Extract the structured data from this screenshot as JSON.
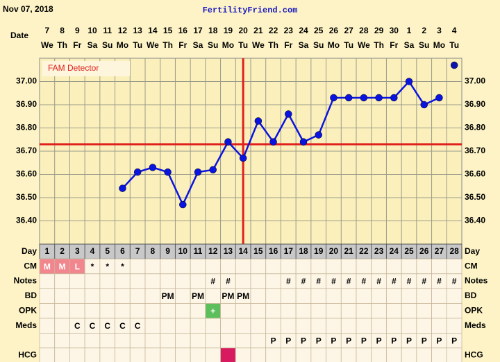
{
  "chart_data": {
    "type": "line",
    "date_label": "Nov 07, 2018",
    "site": "FertilityFriend.com",
    "date_axis_label": "Date",
    "annotation": "FAM Detector",
    "dates": [
      "7",
      "8",
      "9",
      "10",
      "11",
      "12",
      "13",
      "14",
      "15",
      "16",
      "17",
      "18",
      "19",
      "20",
      "21",
      "22",
      "23",
      "24",
      "25",
      "26",
      "27",
      "28",
      "29",
      "30",
      "1",
      "2",
      "3",
      "4"
    ],
    "weekdays": [
      "We",
      "Th",
      "Fr",
      "Sa",
      "Su",
      "Mo",
      "Tu",
      "We",
      "Th",
      "Fr",
      "Sa",
      "Su",
      "Mo",
      "Tu",
      "We",
      "Th",
      "Fr",
      "Sa",
      "Su",
      "Mo",
      "Tu",
      "We",
      "Th",
      "Fr",
      "Sa",
      "Su",
      "Mo",
      "Tu"
    ],
    "day_row_label": "Day",
    "categories": [
      "1",
      "2",
      "3",
      "4",
      "5",
      "6",
      "7",
      "8",
      "9",
      "10",
      "11",
      "12",
      "13",
      "14",
      "15",
      "16",
      "17",
      "18",
      "19",
      "20",
      "21",
      "22",
      "23",
      "24",
      "25",
      "26",
      "27",
      "28"
    ],
    "series": [
      {
        "color": "#0a14e0",
        "values": [
          null,
          null,
          null,
          null,
          null,
          36.54,
          36.61,
          36.63,
          36.61,
          36.47,
          36.61,
          36.62,
          36.74,
          36.67,
          36.83,
          36.74,
          36.86,
          36.74,
          36.77,
          36.93,
          36.93,
          36.93,
          36.93,
          36.93,
          37.0,
          36.9,
          36.93,
          null
        ]
      },
      {
        "color": "#0a14b0",
        "values": [
          null,
          null,
          null,
          null,
          null,
          null,
          null,
          null,
          null,
          null,
          null,
          null,
          null,
          null,
          null,
          null,
          null,
          null,
          null,
          null,
          null,
          null,
          null,
          null,
          null,
          null,
          null,
          37.07
        ]
      }
    ],
    "ylim": [
      36.3,
      37.1
    ],
    "yticks": [
      {
        "value": 36.4,
        "label": "36.40"
      },
      {
        "value": 36.5,
        "label": "36.50"
      },
      {
        "value": 36.6,
        "label": "36.60"
      },
      {
        "value": 36.7,
        "label": "36.70"
      },
      {
        "value": 36.8,
        "label": "36.80"
      },
      {
        "value": 36.9,
        "label": "36.90"
      },
      {
        "value": 37.0,
        "label": "37.00"
      }
    ],
    "grid": true,
    "coverline": 36.73,
    "ovulation_day": "14",
    "line_color": "#e0201c",
    "table": {
      "rows": [
        {
          "label": "CM",
          "cells": [
            "M",
            "M",
            "L",
            "*",
            "*",
            "*",
            null,
            null,
            null,
            null,
            null,
            null,
            null,
            null,
            null,
            null,
            null,
            null,
            null,
            null,
            null,
            null,
            null,
            null,
            null,
            null,
            null,
            null
          ],
          "fills": [
            "#f2868e",
            "#f2868e",
            "#f2868e",
            null,
            null,
            null,
            null,
            null,
            null,
            null,
            null,
            null,
            null,
            null,
            null,
            null,
            null,
            null,
            null,
            null,
            null,
            null,
            null,
            null,
            null,
            null,
            null,
            null
          ]
        },
        {
          "label": "Notes",
          "cells": [
            null,
            null,
            null,
            null,
            null,
            null,
            null,
            null,
            null,
            null,
            null,
            "#",
            "#",
            null,
            null,
            null,
            "#",
            "#",
            "#",
            "#",
            "#",
            "#",
            "#",
            "#",
            "#",
            "#",
            "#",
            "#"
          ]
        },
        {
          "label": "BD",
          "cells": [
            null,
            null,
            null,
            null,
            null,
            null,
            null,
            null,
            "PM",
            null,
            "PM",
            null,
            "PM",
            "PM",
            null,
            null,
            null,
            null,
            null,
            null,
            null,
            null,
            null,
            null,
            null,
            null,
            null,
            null
          ]
        },
        {
          "label": "OPK",
          "cells": [
            null,
            null,
            null,
            null,
            null,
            null,
            null,
            null,
            null,
            null,
            null,
            "+",
            null,
            null,
            null,
            null,
            null,
            null,
            null,
            null,
            null,
            null,
            null,
            null,
            null,
            null,
            null,
            null
          ],
          "fills": [
            null,
            null,
            null,
            null,
            null,
            null,
            null,
            null,
            null,
            null,
            null,
            "#5cbf5c",
            null,
            null,
            null,
            null,
            null,
            null,
            null,
            null,
            null,
            null,
            null,
            null,
            null,
            null,
            null,
            null
          ]
        },
        {
          "label": "Meds",
          "cells": [
            null,
            null,
            "C",
            "C",
            "C",
            "C",
            "C",
            null,
            null,
            null,
            null,
            null,
            null,
            null,
            null,
            null,
            null,
            null,
            null,
            null,
            null,
            null,
            null,
            null,
            null,
            null,
            null,
            null
          ]
        },
        {
          "label": null,
          "cells": [
            null,
            null,
            null,
            null,
            null,
            null,
            null,
            null,
            null,
            null,
            null,
            null,
            null,
            null,
            null,
            "P",
            "P",
            "P",
            "P",
            "P",
            "P",
            "P",
            "P",
            "P",
            "P",
            "P",
            "P",
            "P"
          ]
        },
        {
          "label": "HCG",
          "cells": [
            null,
            null,
            null,
            null,
            null,
            null,
            null,
            null,
            null,
            null,
            null,
            null,
            null,
            null,
            null,
            null,
            null,
            null,
            null,
            null,
            null,
            null,
            null,
            null,
            null,
            null,
            null,
            null
          ],
          "fills": [
            null,
            null,
            null,
            null,
            null,
            null,
            null,
            null,
            null,
            null,
            null,
            null,
            "#d81b60",
            null,
            null,
            null,
            null,
            null,
            null,
            null,
            null,
            null,
            null,
            null,
            null,
            null,
            null,
            null
          ]
        }
      ]
    }
  }
}
